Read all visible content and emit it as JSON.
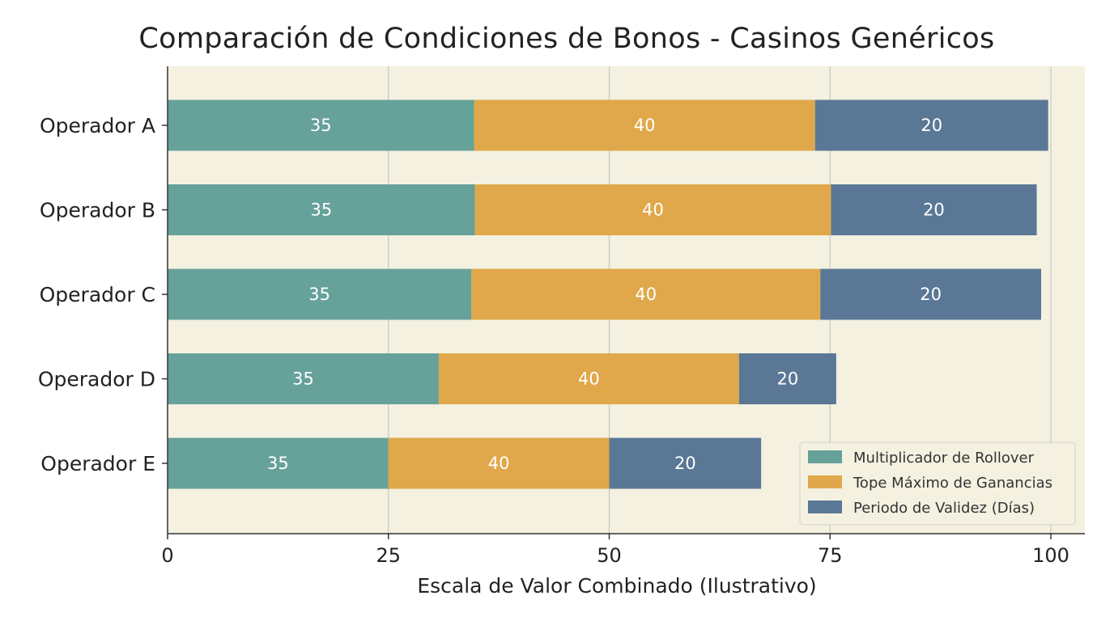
{
  "chart_data": {
    "type": "bar",
    "orientation": "horizontal",
    "stacked": true,
    "title": "Comparación de Condiciones de Bonos - Casinos Genéricos",
    "xlabel": "Escala de Valor Combinado (Ilustrativo)",
    "ylabel": "",
    "xlim": [
      0,
      100
    ],
    "xticks": [
      0,
      25,
      50,
      75,
      100
    ],
    "grid": "vertical",
    "legend_position": "bottom-right",
    "categories": [
      "Operador A",
      "Operador B",
      "Operador C",
      "Operador D",
      "Operador E"
    ],
    "series": [
      {
        "name": "Multiplicador de Rollover",
        "color": "#66a19a",
        "values": [
          34.7,
          34.8,
          34.4,
          30.7,
          25.0
        ],
        "labels": [
          "35",
          "35",
          "35",
          "35",
          "35"
        ]
      },
      {
        "name": "Tope Máximo de Ganancias",
        "color": "#e0a84a",
        "values": [
          38.6,
          40.3,
          39.5,
          34.0,
          25.0
        ],
        "labels": [
          "40",
          "40",
          "40",
          "40",
          "40"
        ]
      },
      {
        "name": "Periodo de Validez (Días)",
        "color": "#5a7896",
        "values": [
          26.4,
          23.3,
          25.0,
          11.0,
          17.2
        ],
        "labels": [
          "20",
          "20",
          "20",
          "20",
          "20"
        ]
      }
    ],
    "background_color": "#f4f1e1",
    "grid_color": "#c8c8c2",
    "axis_color": "#333333"
  }
}
